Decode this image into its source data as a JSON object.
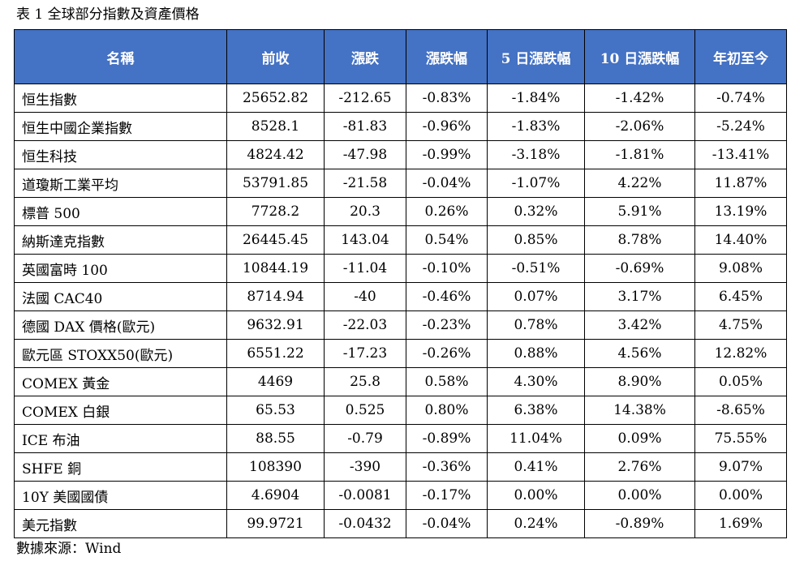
{
  "caption": "表 1 全球部分指數及資產價格",
  "table": {
    "headers": [
      "名稱",
      "前收",
      "漲跌",
      "漲跌幅",
      "5 日漲跌幅",
      "10 日漲跌幅",
      "年初至今"
    ],
    "rows": [
      [
        "恒生指數",
        "25652.82",
        "-212.65",
        "-0.83%",
        "-1.84%",
        "-1.42%",
        "-0.74%"
      ],
      [
        "恒生中國企業指數",
        "8528.1",
        "-81.83",
        "-0.96%",
        "-1.83%",
        "-2.06%",
        "-5.24%"
      ],
      [
        "恒生科技",
        "4824.42",
        "-47.98",
        "-0.99%",
        "-3.18%",
        "-1.81%",
        "-13.41%"
      ],
      [
        "道瓊斯工業平均",
        "53791.85",
        "-21.58",
        "-0.04%",
        "-1.07%",
        "4.22%",
        "11.87%"
      ],
      [
        "標普 500",
        "7728.2",
        "20.3",
        "0.26%",
        "0.32%",
        "5.91%",
        "13.19%"
      ],
      [
        "納斯達克指數",
        "26445.45",
        "143.04",
        "0.54%",
        "0.85%",
        "8.78%",
        "14.40%"
      ],
      [
        "英國富時 100",
        "10844.19",
        "-11.04",
        "-0.10%",
        "-0.51%",
        "-0.69%",
        "9.08%"
      ],
      [
        "法國 CAC40",
        "8714.94",
        "-40",
        "-0.46%",
        "0.07%",
        "3.17%",
        "6.45%"
      ],
      [
        "德國 DAX 價格(歐元)",
        "9632.91",
        "-22.03",
        "-0.23%",
        "0.78%",
        "3.42%",
        "4.75%"
      ],
      [
        "歐元區 STOXX50(歐元)",
        "6551.22",
        "-17.23",
        "-0.26%",
        "0.88%",
        "4.56%",
        "12.82%"
      ],
      [
        "COMEX 黃金",
        "4469",
        "25.8",
        "0.58%",
        "4.30%",
        "8.90%",
        "0.05%"
      ],
      [
        "COMEX 白銀",
        "65.53",
        "0.525",
        "0.80%",
        "6.38%",
        "14.38%",
        "-8.65%"
      ],
      [
        "ICE 布油",
        "88.55",
        "-0.79",
        "-0.89%",
        "11.04%",
        "0.09%",
        "75.55%"
      ],
      [
        "SHFE 銅",
        "108390",
        "-390",
        "-0.36%",
        "0.41%",
        "2.76%",
        "9.07%"
      ],
      [
        "10Y 美國國債",
        "4.6904",
        "-0.0081",
        "-0.17%",
        "0.00%",
        "0.00%",
        "0.00%"
      ],
      [
        "美元指數",
        "99.9721",
        "-0.0432",
        "-0.04%",
        "0.24%",
        "-0.89%",
        "1.69%"
      ]
    ]
  },
  "source": "數據來源：Wind",
  "colors": {
    "header_bg": "#4472c4",
    "header_text": "#ffffff",
    "border": "#000000"
  }
}
